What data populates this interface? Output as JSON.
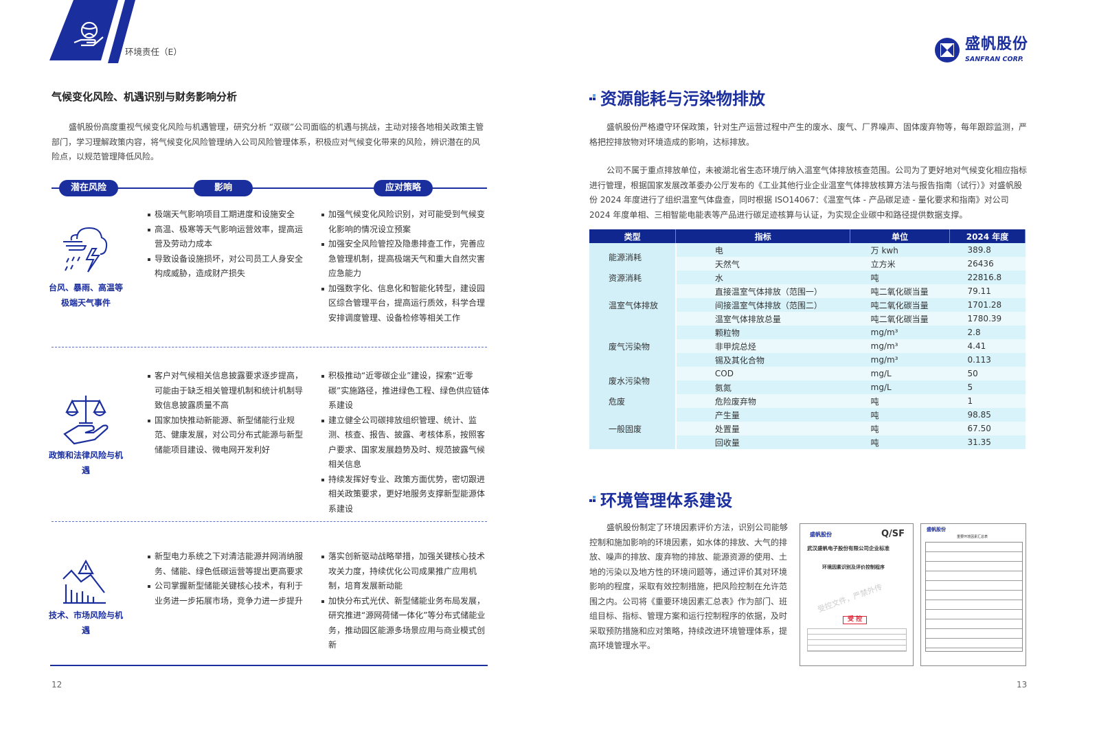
{
  "header": {
    "section_label": "环境责任（E）",
    "logo_cn": "盛帆股份",
    "logo_en": "SANFRAN CORP."
  },
  "left": {
    "title": "气候变化风险、机遇识别与财务影响分析",
    "intro": "盛帆股份高度重视气候变化风险与机遇管理，研究分析 “双碳”公司面临的机遇与挑战，主动对接各地相关政策主管部门，学习理解政策内容，将气候变化风险管理纳入公司风险管理体系，积极应对气候变化带来的风险，辨识潜在的风险点，以规范管理降低风险。",
    "pills": [
      "潜在风险",
      "影响",
      "应对策略"
    ],
    "risks": [
      {
        "icon": "storm-icon",
        "label": "台风、暴雨、高温等极端天气事件",
        "impacts": [
          "极端天气影响项目工期进度和设施安全",
          "高温、极寒等天气影响运营效率，提高运营及劳动力成本",
          "导致设备设施损坏，对公司员工人身安全构成威胁，造成财产损失"
        ],
        "strategies": [
          "加强气候变化风险识别，对可能受到气候变化影响的情况设立预案",
          "加强安全风险管控及隐患排查工作，完善应急管理机制，提高极端天气和重大自然灾害应急能力",
          "加强数字化、信息化和智能化转型，建设园区综合管理平台，提高运行质效，科学合理安排调度管理、设备检修等相关工作"
        ]
      },
      {
        "icon": "scales-icon",
        "label": "政策和法律风险与机遇",
        "impacts": [
          "客户对气候相关信息披露要求逐步提高，可能由于缺乏相关管理机制和统计机制导致信息披露质量不高",
          "国家加快推动新能源、新型储能行业规范、健康发展，对公司分布式能源与新型储能项目建设、微电网开发利好"
        ],
        "strategies": [
          "积极推动“近零碳企业”建设，探索“近零碳”实施路径，推进绿色工程、绿色供应链体系建设",
          "建立健全公司碳排放组织管理、统计、监测、核查、报告、披露、考核体系，按照客户要求、国家发展趋势及时、规范披露气候相关信息",
          "持续发挥好专业、政策方面优势，密切跟进相关政策要求，更好地服务支撑新型能源体系建设"
        ]
      },
      {
        "icon": "market-decline-icon",
        "label": "技术、市场风险与机遇",
        "impacts": [
          "新型电力系统之下对清洁能源并网消纳服务、储能、绿色低碳运营等提出更高要求",
          "公司掌握新型储能关键核心技术，有利于业务进一步拓展市场，竞争力进一步提升"
        ],
        "strategies": [
          "落实创新驱动战略举措，加强关键核心技术攻关力度，持续优化公司成果推广应用机制，培育发展新动能",
          "加快分布式光伏、新型储能业务布局发展，研究推进“源网荷储一体化”等分布式储能业务，推动园区能源多场景应用与商业模式创新"
        ]
      }
    ],
    "page_number": "12"
  },
  "right": {
    "section1_title": "资源能耗与污染物排放",
    "para1": "盛帆股份严格遵守环保政策，针对生产运营过程中产生的废水、废气、厂界噪声、固体废弃物等，每年跟踪监测，严格把控排放物对环境造成的影响，达标排放。",
    "para2": "公司不属于重点排放单位，未被湖北省生态环境厅纳入温室气体排放核查范围。公司为了更好地对气候变化相应指标进行管理，根据国家发展改革委办公厅发布的《工业其他行业企业温室气体排放核算方法与报告指南（试行）》对盛帆股份 2024 年度进行了组织温室气体盘查，同时根据 ISO14067：《温室气体 - 产品碳足迹 - 量化要求和指南》对公司 2024 年度单相、三相智能电能表等产品进行碳足迹核算与认证，为实现企业碳中和路径提供数据支撑。",
    "table": {
      "headers": [
        "类型",
        "指标",
        "单位",
        "2024 年度"
      ],
      "groups": [
        {
          "category": "能源消耗",
          "rows": [
            [
              "电",
              "万 kwh",
              "389.8"
            ],
            [
              "天然气",
              "立方米",
              "26436"
            ]
          ]
        },
        {
          "category": "资源消耗",
          "rows": [
            [
              "水",
              "吨",
              "22816.8"
            ]
          ]
        },
        {
          "category": "温室气体排放",
          "rows": [
            [
              "直接温室气体排放（范围一）",
              "吨二氧化碳当量",
              "79.11"
            ],
            [
              "间接温室气体排放（范围二）",
              "吨二氧化碳当量",
              "1701.28"
            ],
            [
              "温室气体排放总量",
              "吨二氧化碳当量",
              "1780.39"
            ]
          ]
        },
        {
          "category": "废气污染物",
          "rows": [
            [
              "颗粒物",
              "mg/m³",
              "2.8"
            ],
            [
              "非甲烷总烃",
              "mg/m³",
              "4.41"
            ],
            [
              "锡及其化合物",
              "mg/m³",
              "0.113"
            ]
          ]
        },
        {
          "category": "废水污染物",
          "rows": [
            [
              "COD",
              "mg/L",
              "50"
            ],
            [
              "氨氮",
              "mg/L",
              "5"
            ]
          ]
        },
        {
          "category": "危废",
          "rows": [
            [
              "危险废弃物",
              "吨",
              "1"
            ]
          ]
        },
        {
          "category": "一般固废",
          "rows": [
            [
              "产生量",
              "吨",
              "98.85"
            ],
            [
              "处置量",
              "吨",
              "67.50"
            ],
            [
              "回收量",
              "吨",
              "31.35"
            ]
          ]
        }
      ]
    },
    "section2_title": "环境管理体系建设",
    "para3": "盛帆股份制定了环境因素评价方法，识别公司能够控制和施加影响的环境因素，如水体的排放、大气的排放、噪声的排放、废弃物的排放、能源资源的使用、土地的污染以及地方性的环境问题等，通过评价其对环境影响的程度，采取有效控制措施，把风险控制在允许范围之内。公司将《重要环境因素汇总表》作为部门、班组目标、指标、管理方案和运行控制程序的依据，及时采取预防措施和应对策略，持续改进环境管理体系，提高环境管理水平。",
    "doc1": {
      "logo": "盛帆股份",
      "code": "Q/SF",
      "org": "武汉盛帆电子股份有限公司企业标准",
      "name": "环境因素识别及评价控制程序",
      "stamp": "受 控",
      "watermark": "受控文件，严禁外传"
    },
    "doc2": {
      "logo": "盛帆股份",
      "name": "重要环境因素汇总表"
    },
    "page_number": "13"
  },
  "colors": {
    "brand": "#1b2e9e",
    "table_header": "#10278f",
    "table_cell": "#d9f3fa"
  }
}
